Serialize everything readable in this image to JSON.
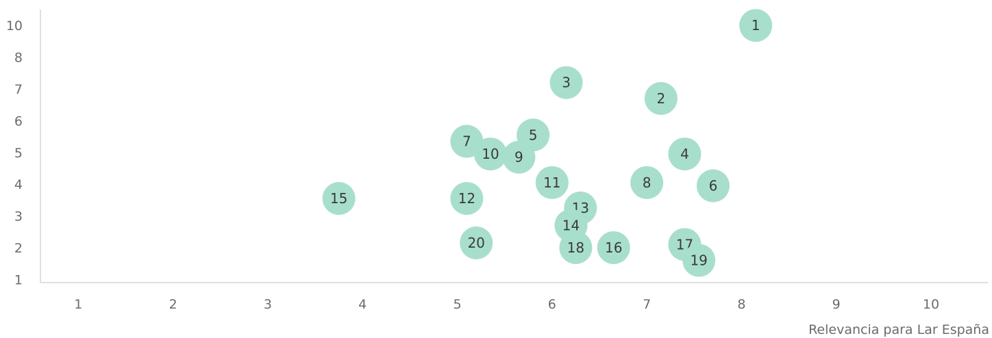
{
  "chart_data": {
    "type": "scatter",
    "xlabel": "Relevancia para Lar España",
    "ylabel": "",
    "x_ticks": [
      {
        "label": "1",
        "value": 1
      },
      {
        "label": "2",
        "value": 2
      },
      {
        "label": "3",
        "value": 3
      },
      {
        "label": "4",
        "value": 4
      },
      {
        "label": "5",
        "value": 5
      },
      {
        "label": "6",
        "value": 6
      },
      {
        "label": "7",
        "value": 7
      },
      {
        "label": "8",
        "value": 8
      },
      {
        "label": "9",
        "value": 9
      },
      {
        "label": "10",
        "value": 10
      }
    ],
    "y_ticks": [
      {
        "label": "10",
        "value": 10
      },
      {
        "label": "8",
        "value": 9
      },
      {
        "label": "7",
        "value": 8
      },
      {
        "label": "6",
        "value": 7
      },
      {
        "label": "5",
        "value": 6
      },
      {
        "label": "4",
        "value": 5
      },
      {
        "label": "3",
        "value": 4
      },
      {
        "label": "2",
        "value": 3
      },
      {
        "label": "1",
        "value": 2
      }
    ],
    "xlim": [
      0.6,
      10.6
    ],
    "ylim": [
      1.9,
      10.5
    ],
    "grid": false,
    "legend": "none",
    "point_color": "#a8dfcc",
    "points": [
      {
        "label": "1",
        "x": 8.15,
        "y": 10.0
      },
      {
        "label": "2",
        "x": 7.15,
        "y": 7.7
      },
      {
        "label": "3",
        "x": 6.15,
        "y": 8.2
      },
      {
        "label": "4",
        "x": 7.4,
        "y": 5.95
      },
      {
        "label": "5",
        "x": 5.8,
        "y": 6.55
      },
      {
        "label": "6",
        "x": 7.7,
        "y": 4.95
      },
      {
        "label": "7",
        "x": 5.1,
        "y": 6.35
      },
      {
        "label": "8",
        "x": 7.0,
        "y": 5.05
      },
      {
        "label": "9",
        "x": 5.65,
        "y": 5.85
      },
      {
        "label": "10",
        "x": 5.35,
        "y": 5.95
      },
      {
        "label": "11",
        "x": 6.0,
        "y": 5.05
      },
      {
        "label": "12",
        "x": 5.1,
        "y": 4.55
      },
      {
        "label": "13",
        "x": 6.3,
        "y": 4.25
      },
      {
        "label": "14",
        "x": 6.2,
        "y": 3.7
      },
      {
        "label": "15",
        "x": 3.75,
        "y": 4.55
      },
      {
        "label": "16",
        "x": 6.65,
        "y": 3.0
      },
      {
        "label": "17",
        "x": 7.4,
        "y": 3.1
      },
      {
        "label": "18",
        "x": 6.25,
        "y": 3.0
      },
      {
        "label": "19",
        "x": 7.55,
        "y": 2.6
      },
      {
        "label": "20",
        "x": 5.2,
        "y": 3.15
      }
    ]
  }
}
